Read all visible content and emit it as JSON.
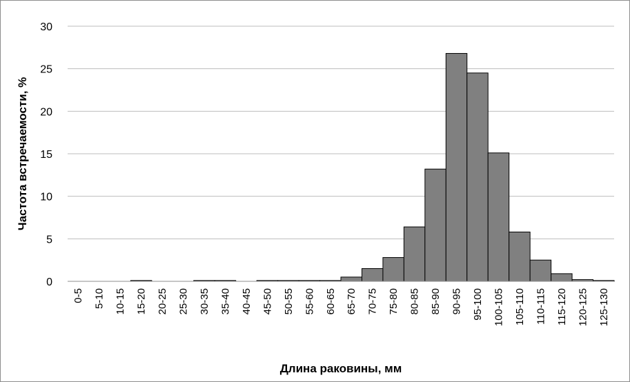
{
  "chart_data": {
    "type": "bar",
    "x_label": "Длина раковины, мм",
    "y_label": "Частота встречаемости, %",
    "categories": [
      "0-5",
      "5-10",
      "10-15",
      "15-20",
      "20-25",
      "25-30",
      "30-35",
      "35-40",
      "40-45",
      "45-50",
      "50-55",
      "55-60",
      "60-65",
      "65-70",
      "70-75",
      "75-80",
      "80-85",
      "85-90",
      "90-95",
      "95-100",
      "100-105",
      "105-110",
      "110-115",
      "115-120",
      "120-125",
      "125-130"
    ],
    "values": [
      0,
      0,
      0,
      0.1,
      0,
      0,
      0.1,
      0.1,
      0,
      0.1,
      0.1,
      0.1,
      0.1,
      0.5,
      1.5,
      2.8,
      6.4,
      13.2,
      26.8,
      24.5,
      15.1,
      5.8,
      2.5,
      0.9,
      0.2,
      0.1
    ],
    "color": "#808080",
    "ylim": [
      0,
      30
    ],
    "yticks": [
      0,
      5,
      10,
      15,
      20,
      25,
      30
    ],
    "grid": true
  }
}
